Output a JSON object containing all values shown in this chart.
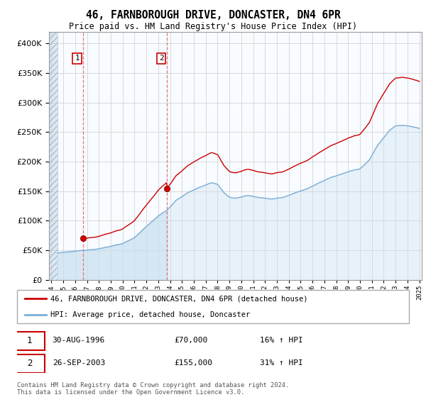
{
  "title": "46, FARNBOROUGH DRIVE, DONCASTER, DN4 6PR",
  "subtitle": "Price paid vs. HM Land Registry's House Price Index (HPI)",
  "legend_line1": "46, FARNBOROUGH DRIVE, DONCASTER, DN4 6PR (detached house)",
  "legend_line2": "HPI: Average price, detached house, Doncaster",
  "sale1_date": "30-AUG-1996",
  "sale1_price": "£70,000",
  "sale1_hpi": "16% ↑ HPI",
  "sale1_year": 1996.67,
  "sale1_value": 70000,
  "sale2_date": "26-SEP-2003",
  "sale2_price": "£155,000",
  "sale2_hpi": "31% ↑ HPI",
  "sale2_year": 2003.75,
  "sale2_value": 155000,
  "hpi_color": "#7aaed6",
  "hpi_fill_color": "#c8dff0",
  "sale_color": "#cc0000",
  "marker_color": "#cc0000",
  "dashed_color": "#e06060",
  "ylim_min": 0,
  "ylim_max": 420000,
  "yticks": [
    0,
    50000,
    100000,
    150000,
    200000,
    250000,
    300000,
    350000,
    400000
  ],
  "year_start": 1994,
  "year_end": 2025,
  "plot_bg": "#f8fbff",
  "hatch_bg": "#dde8f2"
}
